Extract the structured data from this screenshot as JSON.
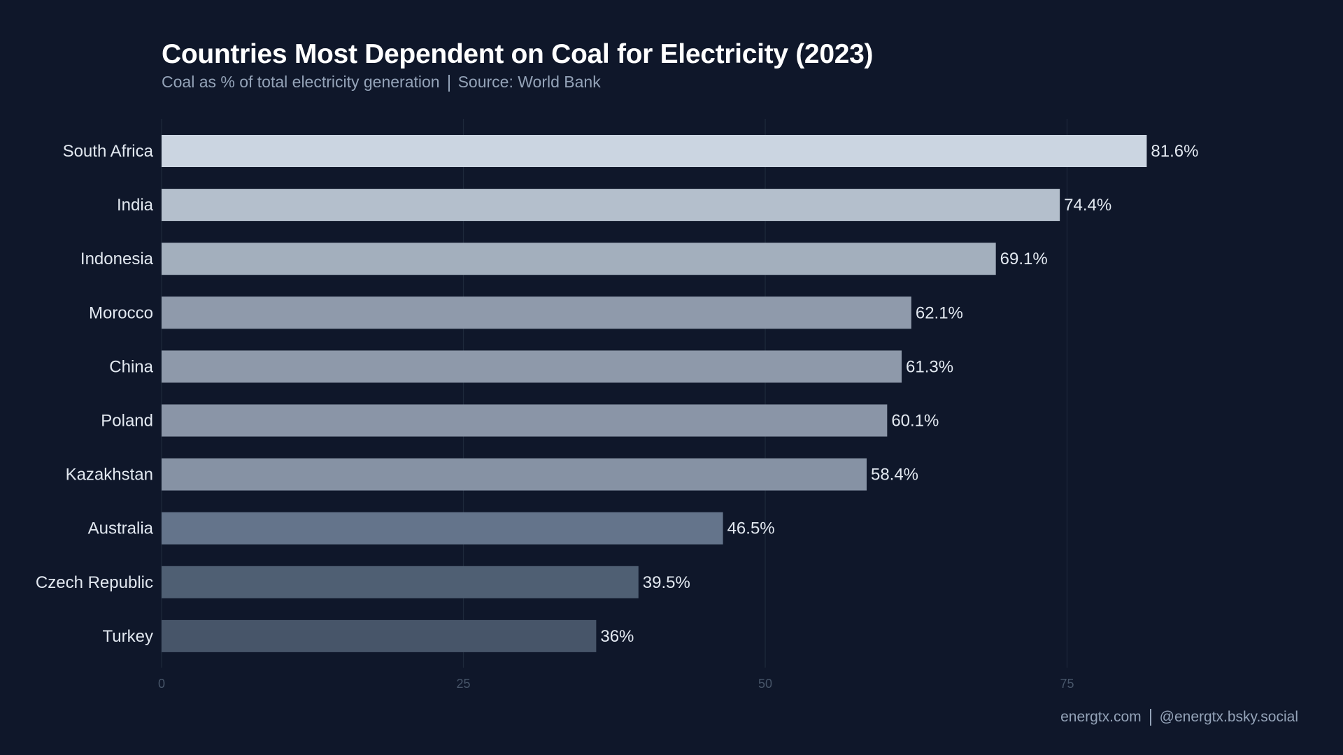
{
  "chart_data": {
    "type": "bar",
    "orientation": "horizontal",
    "title": "Countries Most Dependent on Coal for Electricity (2023)",
    "subtitle_left": "Coal as % of total electricity generation",
    "subtitle_right": "Source: World Bank",
    "categories": [
      "South Africa",
      "India",
      "Indonesia",
      "Morocco",
      "China",
      "Poland",
      "Kazakhstan",
      "Australia",
      "Czech Republic",
      "Turkey"
    ],
    "values": [
      81.6,
      74.4,
      69.1,
      62.1,
      61.3,
      60.1,
      58.4,
      46.5,
      39.5,
      36
    ],
    "value_labels": [
      "81.6%",
      "74.4%",
      "69.1%",
      "62.1%",
      "61.3%",
      "60.1%",
      "58.4%",
      "46.5%",
      "39.5%",
      "36%"
    ],
    "bar_colors": [
      "#cbd5e1",
      "#b4bfcc",
      "#a3afbd",
      "#8f9aab",
      "#8e99aa",
      "#8a95a7",
      "#8692a4",
      "#64748b",
      "#4f5f73",
      "#475569"
    ],
    "xticks": [
      0,
      25,
      50,
      75
    ],
    "xtick_labels": [
      "0",
      "25",
      "50",
      "75"
    ],
    "xlim": [
      0,
      100
    ],
    "grid": true,
    "xlabel": "",
    "ylabel": ""
  },
  "footer": {
    "site": "energtx.com",
    "social": "@energtx.bsky.social"
  },
  "colors": {
    "background": "#0f172a",
    "grid": "#1e293b",
    "tick": "#475569",
    "label": "#e2e8f0"
  }
}
